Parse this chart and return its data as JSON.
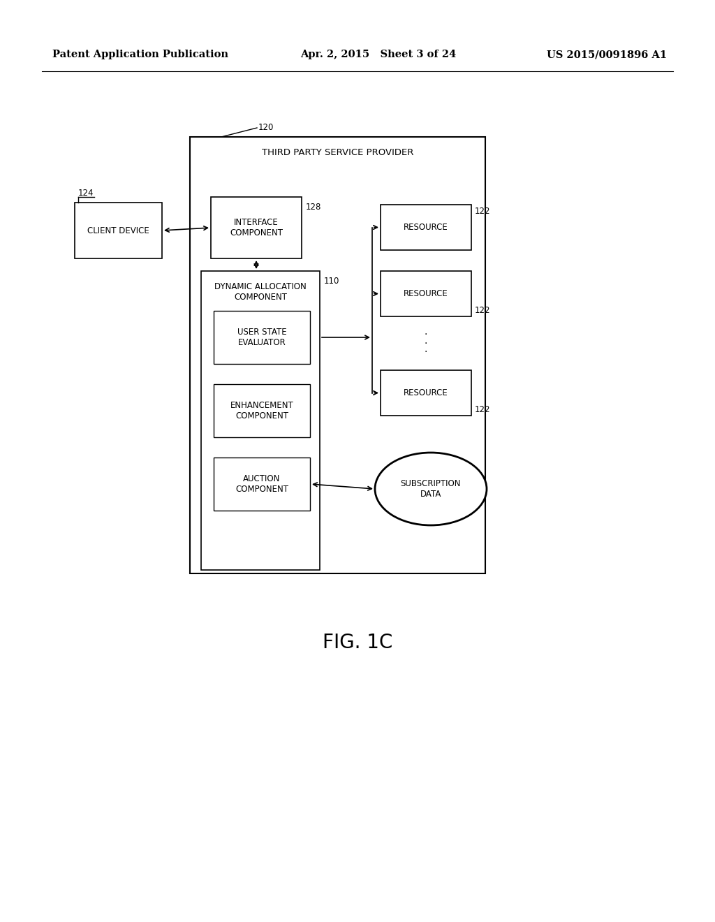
{
  "bg_color": "#ffffff",
  "header_left": "Patent Application Publication",
  "header_mid": "Apr. 2, 2015   Sheet 3 of 24",
  "header_right": "US 2015/0091896 A1",
  "fig_label": "FIG. 1C",
  "outer_box_label": "THIRD PARTY SERVICE PROVIDER",
  "outer_box_label_num": "120",
  "client_device_label": "CLIENT DEVICE",
  "client_device_num": "124",
  "interface_label": "INTERFACE\nCOMPONENT",
  "interface_num": "128",
  "dyn_alloc_label": "DYNAMIC ALLOCATION\nCOMPONENT",
  "dyn_alloc_num": "110",
  "user_state_label": "USER STATE\nEVALUATOR",
  "enhancement_label": "ENHANCEMENT\nCOMPONENT",
  "auction_label": "AUCTION\nCOMPONENT",
  "resource_label": "RESOURCE",
  "resource_num": "122",
  "subscription_label": "SUBSCRIPTION\nDATA",
  "line_color": "#000000",
  "text_color": "#000000",
  "font_size_header": 10.5,
  "font_size_box": 8.5,
  "font_size_fig": 20,
  "font_size_num": 8.5,
  "font_size_outer_label": 9.5
}
